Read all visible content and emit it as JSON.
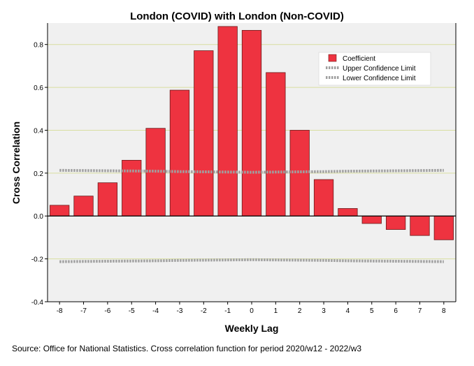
{
  "chart_data": {
    "type": "bar",
    "title": "London (COVID) with London (Non-COVID)",
    "xlabel": "Weekly Lag",
    "ylabel": "Cross Correlation",
    "categories": [
      "-8",
      "-7",
      "-6",
      "-5",
      "-4",
      "-3",
      "-2",
      "-1",
      "0",
      "1",
      "2",
      "3",
      "4",
      "5",
      "6",
      "7",
      "8"
    ],
    "ylim": [
      -0.4,
      0.9
    ],
    "yticks": [
      -0.4,
      -0.2,
      0.0,
      0.2,
      0.4,
      0.6,
      0.8
    ],
    "ytick_labels": [
      "-0.4",
      "-0.2",
      "0.0",
      "0.2",
      "0.4",
      "0.6",
      "0.8"
    ],
    "grid": true,
    "legend_position": "top-right",
    "series": [
      {
        "name": "Coefficient",
        "kind": "bar",
        "color": "#ee3340",
        "values": [
          0.05,
          0.093,
          0.155,
          0.26,
          0.409,
          0.587,
          0.771,
          0.884,
          0.866,
          0.669,
          0.4,
          0.17,
          0.035,
          -0.035,
          -0.063,
          -0.091,
          -0.111
        ]
      },
      {
        "name": "Upper Confidence Limit",
        "kind": "line",
        "style": "dotted",
        "color": "#a0a0a0",
        "values": [
          0.213,
          0.212,
          0.211,
          0.21,
          0.209,
          0.207,
          0.206,
          0.205,
          0.204,
          0.205,
          0.206,
          0.207,
          0.209,
          0.21,
          0.211,
          0.212,
          0.213
        ]
      },
      {
        "name": "Lower Confidence Limit",
        "kind": "line",
        "style": "dotted",
        "color": "#a0a0a0",
        "values": [
          -0.213,
          -0.212,
          -0.211,
          -0.21,
          -0.209,
          -0.207,
          -0.206,
          -0.205,
          -0.204,
          -0.205,
          -0.206,
          -0.207,
          -0.209,
          -0.21,
          -0.211,
          -0.212,
          -0.213
        ]
      }
    ]
  },
  "footer": {
    "source": "Source: Office for National Statistics. Cross correlation function for period 2020/w12 - 2022/w3"
  },
  "colors": {
    "plot_background": "#f0f0f0",
    "gridline": "#d8dea0",
    "bar_fill": "#ee3340",
    "bar_stroke": "#6b1c1c",
    "confidence_line": "#a0a0a0"
  }
}
